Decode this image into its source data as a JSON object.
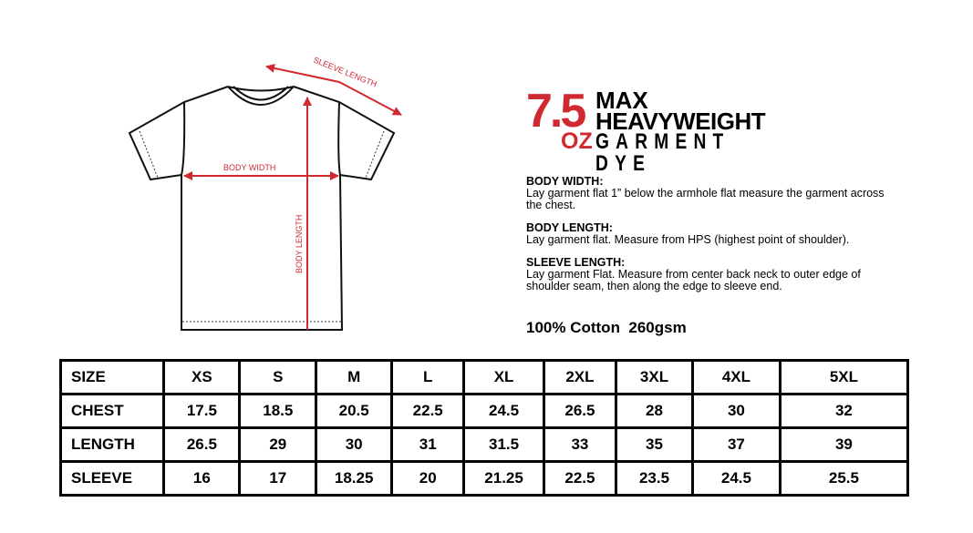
{
  "diagram": {
    "sleeve_label": "SLEEVE LENGTH",
    "width_label": "BODY WIDTH",
    "length_label": "BODY LENGTH",
    "accent": "#d02a30"
  },
  "logo": {
    "weight": "7.5",
    "unit": "OZ",
    "line1": "MAX",
    "line2": "HEAVYWEIGHT",
    "line3": "GARMENT DYE"
  },
  "instructions": [
    {
      "title": "BODY WIDTH:",
      "text": "Lay garment flat 1” below the armhole flat measure the garment across the chest."
    },
    {
      "title": "BODY LENGTH:",
      "text": "Lay garment flat. Measure from HPS (highest point of shoulder)."
    },
    {
      "title": "SLEEVE LENGTH:",
      "text": "Lay garment Flat. Measure from center back neck to outer edge of shoulder seam, then along the edge to sleeve end."
    }
  ],
  "fabric": "100% Cotton  260gsm",
  "table": {
    "rows": [
      [
        "SIZE",
        "XS",
        "S",
        "M",
        "L",
        "XL",
        "2XL",
        "3XL",
        "4XL",
        "5XL"
      ],
      [
        "CHEST",
        "17.5",
        "18.5",
        "20.5",
        "22.5",
        "24.5",
        "26.5",
        "28",
        "30",
        "32"
      ],
      [
        "LENGTH",
        "26.5",
        "29",
        "30",
        "31",
        "31.5",
        "33",
        "35",
        "37",
        "39"
      ],
      [
        "SLEEVE",
        "16",
        "17",
        "18.25",
        "20",
        "21.25",
        "22.5",
        "23.5",
        "24.5",
        "25.5"
      ]
    ]
  }
}
